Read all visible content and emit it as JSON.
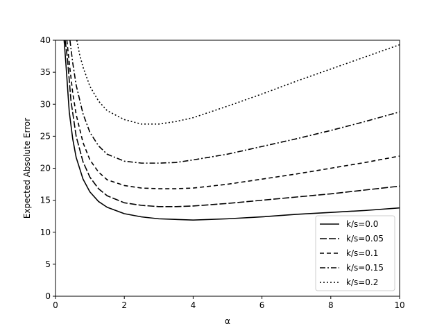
{
  "chart_data": {
    "type": "line",
    "title": "",
    "xlabel": "α",
    "ylabel": "Expected Absolute Error",
    "xlim": [
      0,
      10
    ],
    "ylim": [
      0,
      40
    ],
    "xticks": [
      0,
      2,
      4,
      6,
      8,
      10
    ],
    "yticks": [
      0,
      5,
      10,
      15,
      20,
      25,
      30,
      35,
      40
    ],
    "grid": false,
    "legend_position": "lower-right",
    "series": [
      {
        "name": "k/s=0.0",
        "linestyle": "solid",
        "points": [
          [
            0.25,
            40
          ],
          [
            0.3,
            36.5
          ],
          [
            0.4,
            28.8
          ],
          [
            0.5,
            24.6
          ],
          [
            0.6,
            21.7
          ],
          [
            0.8,
            18.3
          ],
          [
            1.0,
            16.3
          ],
          [
            1.25,
            14.8
          ],
          [
            1.5,
            13.9
          ],
          [
            2.0,
            12.9
          ],
          [
            2.5,
            12.4
          ],
          [
            3.0,
            12.1
          ],
          [
            4.0,
            11.9
          ],
          [
            5.0,
            12.1
          ],
          [
            6.0,
            12.4
          ],
          [
            7.0,
            12.8
          ],
          [
            8.0,
            13.1
          ],
          [
            9.0,
            13.4
          ],
          [
            10.0,
            13.8
          ]
        ]
      },
      {
        "name": "k/s=0.05",
        "linestyle": "dashed-long",
        "points": [
          [
            0.28,
            40
          ],
          [
            0.35,
            37.0
          ],
          [
            0.45,
            30.5
          ],
          [
            0.6,
            25.0
          ],
          [
            0.8,
            21.0
          ],
          [
            1.0,
            18.6
          ],
          [
            1.25,
            16.8
          ],
          [
            1.5,
            15.7
          ],
          [
            2.0,
            14.6
          ],
          [
            2.5,
            14.2
          ],
          [
            3.0,
            14.0
          ],
          [
            3.5,
            14.0
          ],
          [
            4.0,
            14.1
          ],
          [
            5.0,
            14.5
          ],
          [
            6.0,
            15.0
          ],
          [
            7.0,
            15.5
          ],
          [
            8.0,
            16.0
          ],
          [
            9.0,
            16.6
          ],
          [
            10.0,
            17.2
          ]
        ]
      },
      {
        "name": "k/s=0.1",
        "linestyle": "dashed",
        "points": [
          [
            0.33,
            40
          ],
          [
            0.4,
            36.5
          ],
          [
            0.5,
            31.8
          ],
          [
            0.6,
            28.4
          ],
          [
            0.8,
            24.0
          ],
          [
            1.0,
            21.3
          ],
          [
            1.25,
            19.4
          ],
          [
            1.5,
            18.2
          ],
          [
            2.0,
            17.3
          ],
          [
            2.5,
            16.9
          ],
          [
            3.0,
            16.8
          ],
          [
            3.5,
            16.8
          ],
          [
            4.0,
            16.9
          ],
          [
            5.0,
            17.5
          ],
          [
            6.0,
            18.3
          ],
          [
            7.0,
            19.1
          ],
          [
            8.0,
            20.0
          ],
          [
            9.0,
            20.9
          ],
          [
            10.0,
            21.9
          ]
        ]
      },
      {
        "name": "k/s=0.15",
        "linestyle": "dashdot",
        "points": [
          [
            0.42,
            40
          ],
          [
            0.5,
            36.5
          ],
          [
            0.6,
            33.0
          ],
          [
            0.8,
            28.5
          ],
          [
            1.0,
            25.6
          ],
          [
            1.25,
            23.5
          ],
          [
            1.5,
            22.2
          ],
          [
            2.0,
            21.1
          ],
          [
            2.5,
            20.8
          ],
          [
            3.0,
            20.8
          ],
          [
            3.5,
            20.9
          ],
          [
            4.0,
            21.3
          ],
          [
            5.0,
            22.2
          ],
          [
            6.0,
            23.4
          ],
          [
            7.0,
            24.6
          ],
          [
            8.0,
            25.9
          ],
          [
            9.0,
            27.3
          ],
          [
            10.0,
            28.8
          ]
        ]
      },
      {
        "name": "k/s=0.2",
        "linestyle": "dotted",
        "points": [
          [
            0.62,
            40
          ],
          [
            0.7,
            37.8
          ],
          [
            0.8,
            35.8
          ],
          [
            1.0,
            32.8
          ],
          [
            1.25,
            30.5
          ],
          [
            1.5,
            29.0
          ],
          [
            2.0,
            27.6
          ],
          [
            2.5,
            26.9
          ],
          [
            3.0,
            26.9
          ],
          [
            3.5,
            27.3
          ],
          [
            4.0,
            27.9
          ],
          [
            5.0,
            29.7
          ],
          [
            6.0,
            31.6
          ],
          [
            7.0,
            33.6
          ],
          [
            8.0,
            35.5
          ],
          [
            9.0,
            37.4
          ],
          [
            10.0,
            39.3
          ]
        ]
      }
    ]
  }
}
